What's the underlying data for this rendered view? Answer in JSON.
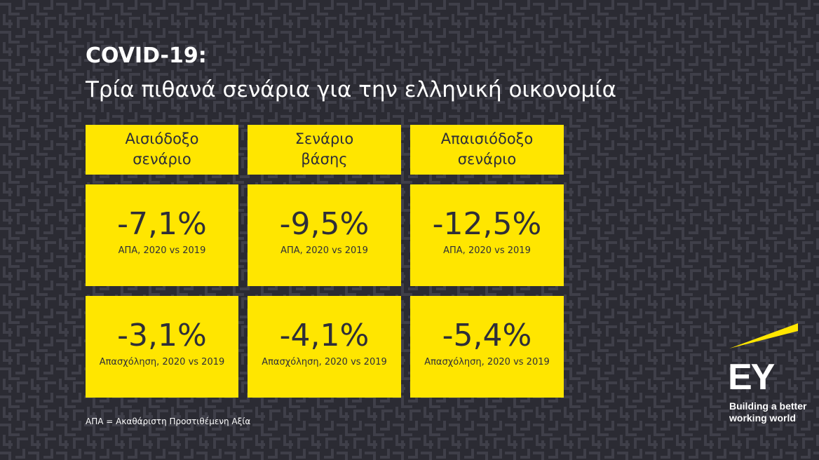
{
  "header": {
    "title": "COVID-19:",
    "subtitle": "Τρία πιθανά σενάρια για την ελληνική οικονομία"
  },
  "table": {
    "columns": [
      [
        "Αισιόδοξο",
        "σενάριο"
      ],
      [
        "Σενάριο",
        "βάσης"
      ],
      [
        "Απαισιόδοξο",
        "σενάριο"
      ]
    ],
    "rows": [
      {
        "values": [
          "-7,1%",
          "-9,5%",
          "-12,5%"
        ],
        "label": "ΑΠΑ, 2020 vs 2019"
      },
      {
        "values": [
          "-3,1%",
          "-4,1%",
          "-5,4%"
        ],
        "label": "Απασχόληση, 2020 vs 2019"
      }
    ]
  },
  "footnote": "ΑΠΑ = Ακαθάριστη Προστιθέμενη Αξία",
  "logo": {
    "name": "EY",
    "tagline": [
      "Building a better",
      "working world"
    ]
  }
}
